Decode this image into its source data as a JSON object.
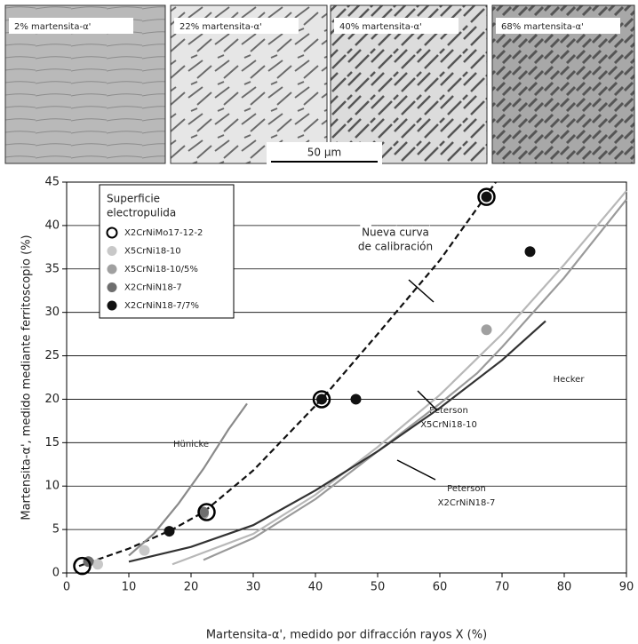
{
  "micrographs": [
    {
      "label": "2% martensita-α'"
    },
    {
      "label": "22% martensita-α'"
    },
    {
      "label": "40% martensita-α'"
    },
    {
      "label": "68% martensita-α'"
    }
  ],
  "scale_bar": "50 μm",
  "chart_data": {
    "type": "scatter",
    "xlabel": "Martensita-α', medido por difracción rayos X (%)",
    "ylabel": "Martensita-α', medido mediante ferritoscopio (%)",
    "xlim": [
      0,
      90
    ],
    "ylim": [
      0,
      45
    ],
    "xticks": [
      0,
      10,
      20,
      30,
      40,
      50,
      60,
      70,
      80,
      90
    ],
    "yticks": [
      0,
      5,
      10,
      15,
      20,
      25,
      30,
      35,
      40,
      45
    ],
    "grid": true,
    "legend_title": [
      "Superficie",
      "electropulida"
    ],
    "series": [
      {
        "name": "X2CrNiMo17-12-2",
        "color": "#000000",
        "marker": "open",
        "x": [
          2.5,
          22.5,
          41,
          67.5
        ],
        "values": [
          0.8,
          7,
          20,
          43.3
        ]
      },
      {
        "name": "X5CrNi18-10",
        "color": "#c8c8c8",
        "marker": "filled",
        "x": [
          5,
          12.5
        ],
        "values": [
          1,
          2.6
        ]
      },
      {
        "name": "X5CrNi18-10/5%",
        "color": "#a0a0a0",
        "marker": "filled",
        "x": [
          22,
          67.5
        ],
        "values": [
          6.8,
          28
        ]
      },
      {
        "name": "X2CrNiN18-7",
        "color": "#6e6e6e",
        "marker": "filled",
        "x": [
          3.5,
          22
        ],
        "values": [
          1.3,
          7
        ]
      },
      {
        "name": "X2CrNiN18-7/7%",
        "color": "#111111",
        "marker": "filled",
        "x": [
          16.5,
          41,
          46.5,
          67.5,
          74.5
        ],
        "values": [
          4.8,
          20,
          20,
          43.3,
          37
        ]
      }
    ],
    "curves": [
      {
        "label": [
          "Nueva curva",
          "de calibración"
        ],
        "color": "#111111",
        "dashed": true,
        "x": [
          2,
          10,
          17,
          22,
          30,
          41,
          50,
          60,
          69
        ],
        "values": [
          0.8,
          2.8,
          5,
          7,
          11.8,
          20,
          27.5,
          36,
          45
        ]
      },
      {
        "label": [
          "Hünicke"
        ],
        "color": "#8a8a8a",
        "dashed": false,
        "x": [
          10,
          14,
          18,
          22,
          26,
          29
        ],
        "values": [
          2,
          4.5,
          8,
          12,
          16.5,
          19.5
        ]
      },
      {
        "label": [
          "Peterson",
          "X5CrNi18-10"
        ],
        "color": "#b8b8b8",
        "dashed": false,
        "x": [
          17,
          30,
          40,
          50,
          60,
          70,
          80,
          90
        ],
        "values": [
          1,
          4.5,
          9,
          14.5,
          20.5,
          27.5,
          35.5,
          44
        ]
      },
      {
        "label": [
          "Peterson",
          "X2CrNiN18-7"
        ],
        "color": "#9a9a9a",
        "dashed": false,
        "x": [
          22,
          30,
          40,
          50,
          60,
          66,
          70,
          80,
          90
        ],
        "values": [
          1.5,
          4,
          8.5,
          14,
          19.5,
          23,
          26,
          34,
          43
        ]
      },
      {
        "label": [
          "Hecker"
        ],
        "color": "#333333",
        "dashed": false,
        "x": [
          10,
          20,
          30,
          40,
          50,
          60,
          70,
          77
        ],
        "values": [
          1.3,
          3,
          5.5,
          9.5,
          14,
          19,
          24.5,
          29
        ]
      }
    ]
  }
}
